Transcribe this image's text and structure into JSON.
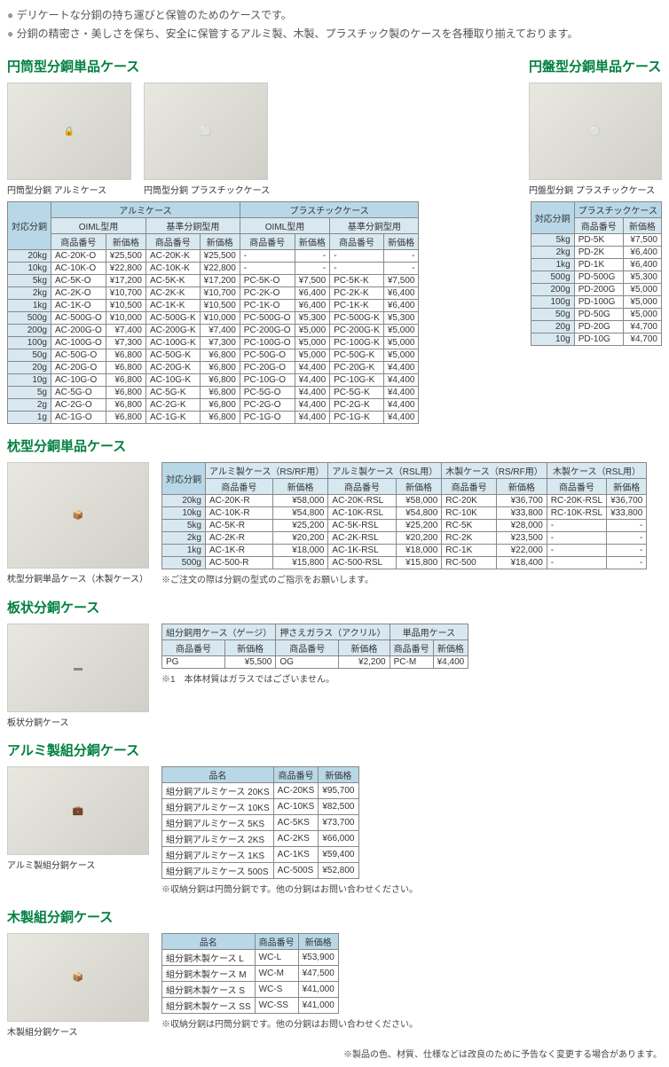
{
  "intro": [
    "デリケートな分銅の持ち運びと保管のためのケースです。",
    "分銅の精密さ・美しさを保ち、安全に保管するアルミ製、木製、プラスチック製のケースを各種取り揃えております。"
  ],
  "s1": {
    "title_left": "円筒型分銅単品ケース",
    "title_right": "円盤型分銅単品ケース",
    "captions": {
      "alu": "円筒型分銅 アルミケース",
      "pla": "円筒型分銅 プラスチックケース",
      "disc": "円盤型分銅 プラスチックケース"
    },
    "main_header": {
      "c0": "対応分銅",
      "g1": "アルミケース",
      "g2": "プラスチックケース",
      "s1": "OIML型用",
      "s2": "基準分銅型用",
      "code": "商品番号",
      "price": "新価格"
    },
    "rows": [
      {
        "w": "20kg",
        "a1": "AC-20K-O",
        "p1": "¥25,500",
        "a2": "AC-20K-K",
        "p2": "¥25,500",
        "b1": "-",
        "q1": "-",
        "b2": "-",
        "q2": "-"
      },
      {
        "w": "10kg",
        "a1": "AC-10K-O",
        "p1": "¥22,800",
        "a2": "AC-10K-K",
        "p2": "¥22,800",
        "b1": "-",
        "q1": "-",
        "b2": "-",
        "q2": "-"
      },
      {
        "w": "5kg",
        "a1": "AC-5K-O",
        "p1": "¥17,200",
        "a2": "AC-5K-K",
        "p2": "¥17,200",
        "b1": "PC-5K-O",
        "q1": "¥7,500",
        "b2": "PC-5K-K",
        "q2": "¥7,500"
      },
      {
        "w": "2kg",
        "a1": "AC-2K-O",
        "p1": "¥10,700",
        "a2": "AC-2K-K",
        "p2": "¥10,700",
        "b1": "PC-2K-O",
        "q1": "¥6,400",
        "b2": "PC-2K-K",
        "q2": "¥6,400"
      },
      {
        "w": "1kg",
        "a1": "AC-1K-O",
        "p1": "¥10,500",
        "a2": "AC-1K-K",
        "p2": "¥10,500",
        "b1": "PC-1K-O",
        "q1": "¥6,400",
        "b2": "PC-1K-K",
        "q2": "¥6,400"
      },
      {
        "w": "500g",
        "a1": "AC-500G-O",
        "p1": "¥10,000",
        "a2": "AC-500G-K",
        "p2": "¥10,000",
        "b1": "PC-500G-O",
        "q1": "¥5,300",
        "b2": "PC-500G-K",
        "q2": "¥5,300"
      },
      {
        "w": "200g",
        "a1": "AC-200G-O",
        "p1": "¥7,400",
        "a2": "AC-200G-K",
        "p2": "¥7,400",
        "b1": "PC-200G-O",
        "q1": "¥5,000",
        "b2": "PC-200G-K",
        "q2": "¥5,000"
      },
      {
        "w": "100g",
        "a1": "AC-100G-O",
        "p1": "¥7,300",
        "a2": "AC-100G-K",
        "p2": "¥7,300",
        "b1": "PC-100G-O",
        "q1": "¥5,000",
        "b2": "PC-100G-K",
        "q2": "¥5,000"
      },
      {
        "w": "50g",
        "a1": "AC-50G-O",
        "p1": "¥6,800",
        "a2": "AC-50G-K",
        "p2": "¥6,800",
        "b1": "PC-50G-O",
        "q1": "¥5,000",
        "b2": "PC-50G-K",
        "q2": "¥5,000"
      },
      {
        "w": "20g",
        "a1": "AC-20G-O",
        "p1": "¥6,800",
        "a2": "AC-20G-K",
        "p2": "¥6,800",
        "b1": "PC-20G-O",
        "q1": "¥4,400",
        "b2": "PC-20G-K",
        "q2": "¥4,400"
      },
      {
        "w": "10g",
        "a1": "AC-10G-O",
        "p1": "¥6,800",
        "a2": "AC-10G-K",
        "p2": "¥6,800",
        "b1": "PC-10G-O",
        "q1": "¥4,400",
        "b2": "PC-10G-K",
        "q2": "¥4,400"
      },
      {
        "w": "5g",
        "a1": "AC-5G-O",
        "p1": "¥6,800",
        "a2": "AC-5G-K",
        "p2": "¥6,800",
        "b1": "PC-5G-O",
        "q1": "¥4,400",
        "b2": "PC-5G-K",
        "q2": "¥4,400"
      },
      {
        "w": "2g",
        "a1": "AC-2G-O",
        "p1": "¥6,800",
        "a2": "AC-2G-K",
        "p2": "¥6,800",
        "b1": "PC-2G-O",
        "q1": "¥4,400",
        "b2": "PC-2G-K",
        "q2": "¥4,400"
      },
      {
        "w": "1g",
        "a1": "AC-1G-O",
        "p1": "¥6,800",
        "a2": "AC-1G-K",
        "p2": "¥6,800",
        "b1": "PC-1G-O",
        "q1": "¥4,400",
        "b2": "PC-1G-K",
        "q2": "¥4,400"
      }
    ],
    "disc_header": {
      "c0": "対応分銅",
      "g": "プラスチックケース",
      "code": "商品番号",
      "price": "新価格"
    },
    "disc_rows": [
      {
        "w": "5kg",
        "c": "PD-5K",
        "p": "¥7,500"
      },
      {
        "w": "2kg",
        "c": "PD-2K",
        "p": "¥6,400"
      },
      {
        "w": "1kg",
        "c": "PD-1K",
        "p": "¥6,400"
      },
      {
        "w": "500g",
        "c": "PD-500G",
        "p": "¥5,300"
      },
      {
        "w": "200g",
        "c": "PD-200G",
        "p": "¥5,000"
      },
      {
        "w": "100g",
        "c": "PD-100G",
        "p": "¥5,000"
      },
      {
        "w": "50g",
        "c": "PD-50G",
        "p": "¥5,000"
      },
      {
        "w": "20g",
        "c": "PD-20G",
        "p": "¥4,700"
      },
      {
        "w": "10g",
        "c": "PD-10G",
        "p": "¥4,700"
      }
    ]
  },
  "s2": {
    "title": "枕型分銅単品ケース",
    "caption": "枕型分銅単品ケース（木製ケース）",
    "header": {
      "c0": "対応分銅",
      "g1": "アルミ製ケース（RS/RF用）",
      "g2": "アルミ製ケース（RSL用）",
      "g3": "木製ケース（RS/RF用）",
      "g4": "木製ケース（RSL用）",
      "code": "商品番号",
      "price": "新価格"
    },
    "rows": [
      {
        "w": "20kg",
        "a": "AC-20K-R",
        "ap": "¥58,000",
        "b": "AC-20K-RSL",
        "bp": "¥58,000",
        "c": "RC-20K",
        "cp": "¥36,700",
        "d": "RC-20K-RSL",
        "dp": "¥36,700"
      },
      {
        "w": "10kg",
        "a": "AC-10K-R",
        "ap": "¥54,800",
        "b": "AC-10K-RSL",
        "bp": "¥54,800",
        "c": "RC-10K",
        "cp": "¥33,800",
        "d": "RC-10K-RSL",
        "dp": "¥33,800"
      },
      {
        "w": "5kg",
        "a": "AC-5K-R",
        "ap": "¥25,200",
        "b": "AC-5K-RSL",
        "bp": "¥25,200",
        "c": "RC-5K",
        "cp": "¥28,000",
        "d": "-",
        "dp": "-"
      },
      {
        "w": "2kg",
        "a": "AC-2K-R",
        "ap": "¥20,200",
        "b": "AC-2K-RSL",
        "bp": "¥20,200",
        "c": "RC-2K",
        "cp": "¥23,500",
        "d": "-",
        "dp": "-"
      },
      {
        "w": "1kg",
        "a": "AC-1K-R",
        "ap": "¥18,000",
        "b": "AC-1K-RSL",
        "bp": "¥18,000",
        "c": "RC-1K",
        "cp": "¥22,000",
        "d": "-",
        "dp": "-"
      },
      {
        "w": "500g",
        "a": "AC-500-R",
        "ap": "¥15,800",
        "b": "AC-500-RSL",
        "bp": "¥15,800",
        "c": "RC-500",
        "cp": "¥18,400",
        "d": "-",
        "dp": "-"
      }
    ],
    "note": "※ご注文の際は分銅の型式のご指示をお願いします。"
  },
  "s3": {
    "title": "板状分銅ケース",
    "caption": "板状分銅ケース",
    "header": {
      "g1": "組分銅用ケース（ゲージ）",
      "g2": "押さえガラス（アクリル）",
      "g3": "単品用ケース",
      "code": "商品番号",
      "price": "新価格"
    },
    "row": {
      "a": "PG",
      "ap": "¥5,500",
      "b": "OG",
      "bp": "¥2,200",
      "c": "PC-M",
      "cp": "¥4,400"
    },
    "note": "※1　本体材質はガラスではございません。"
  },
  "s4": {
    "title": "アルミ製組分銅ケース",
    "caption": "アルミ製組分銅ケース",
    "header": {
      "name": "品名",
      "code": "商品番号",
      "price": "新価格"
    },
    "rows": [
      {
        "n": "組分銅アルミケース 20KS",
        "c": "AC-20KS",
        "p": "¥95,700"
      },
      {
        "n": "組分銅アルミケース 10KS",
        "c": "AC-10KS",
        "p": "¥82,500"
      },
      {
        "n": "組分銅アルミケース 5KS",
        "c": "AC-5KS",
        "p": "¥73,700"
      },
      {
        "n": "組分銅アルミケース 2KS",
        "c": "AC-2KS",
        "p": "¥66,000"
      },
      {
        "n": "組分銅アルミケース 1KS",
        "c": "AC-1KS",
        "p": "¥59,400"
      },
      {
        "n": "組分銅アルミケース 500S",
        "c": "AC-500S",
        "p": "¥52,800"
      }
    ],
    "note": "※収納分銅は円筒分銅です。他の分銅はお問い合わせください。"
  },
  "s5": {
    "title": "木製組分銅ケース",
    "caption": "木製組分銅ケース",
    "header": {
      "name": "品名",
      "code": "商品番号",
      "price": "新価格"
    },
    "rows": [
      {
        "n": "組分銅木製ケース L",
        "c": "WC-L",
        "p": "¥53,900"
      },
      {
        "n": "組分銅木製ケース M",
        "c": "WC-M",
        "p": "¥47,500"
      },
      {
        "n": "組分銅木製ケース S",
        "c": "WC-S",
        "p": "¥41,000"
      },
      {
        "n": "組分銅木製ケース SS",
        "c": "WC-SS",
        "p": "¥41,000"
      }
    ],
    "note": "※収納分銅は円筒分銅です。他の分銅はお問い合わせください。"
  },
  "footer": "※製品の色、材質、仕様などは改良のために予告なく変更する場合があります。"
}
